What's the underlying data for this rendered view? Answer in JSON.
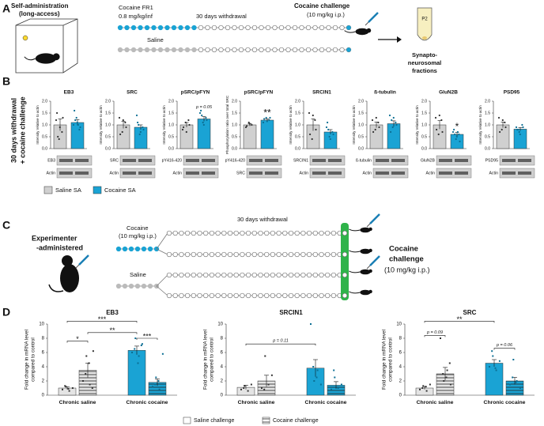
{
  "panel_a": {
    "letter": "A",
    "setup": [
      "Self-administration",
      "(long-access)"
    ],
    "cocaine_dose": [
      "Cocaine FR1",
      "0.8 mg/kg/inf"
    ],
    "withdrawal": "30 days withdrawal",
    "saline": "Saline",
    "challenge": [
      "Cocaine challenge",
      "(10 mg/kg i.p.)"
    ],
    "tube": "P2",
    "fractions": [
      "Synapto-",
      "neurosomal",
      "fractions"
    ]
  },
  "panel_b": {
    "letter": "B",
    "type": "bar",
    "side_label": [
      "30 days withdrawal",
      "+ cocaine challenge"
    ],
    "ylim": [
      0,
      2
    ],
    "yticks": [
      {
        "value": 0,
        "label": "0.0"
      },
      0.5,
      {
        "value": 1,
        "label": "1.0"
      },
      1.5,
      {
        "value": 2,
        "label": "2.0"
      }
    ],
    "series": [
      {
        "name": "Saline SA",
        "color": "#d0d0d0"
      },
      {
        "name": "Cocaine SA",
        "color": "#1aa3d4"
      }
    ],
    "charts": [
      {
        "title": "EB3",
        "ylabel": "Intensity relative to actin",
        "values": [
          1.0,
          1.1
        ],
        "errors": [
          0.25,
          0.12
        ],
        "points": [
          [
            1.2,
            0.4,
            0.7,
            1.5,
            0.9,
            1.3,
            0.5
          ],
          [
            1.0,
            1.3,
            0.8,
            1.6,
            1.1,
            0.9,
            1.2,
            1.0
          ]
        ],
        "blots": [
          "EB3",
          "Actin"
        ]
      },
      {
        "title": "SRC",
        "ylabel": "Intensity relative to actin",
        "values": [
          1.0,
          0.9
        ],
        "errors": [
          0.15,
          0.1
        ],
        "points": [
          [
            1.3,
            0.7,
            1.1,
            0.6,
            1.2,
            0.9
          ],
          [
            1.4,
            0.6,
            0.9,
            1.1,
            0.7,
            0.8,
            1.0
          ]
        ],
        "blots": [
          "SRC",
          "Actin"
        ]
      },
      {
        "title": "pSRC/pFYN",
        "ylabel": "Intensity relative to actin",
        "values": [
          1.0,
          1.25
        ],
        "errors": [
          0.1,
          0.1
        ],
        "points": [
          [
            0.8,
            1.1,
            1.2,
            0.9,
            0.7,
            1.0
          ],
          [
            1.5,
            1.1,
            1.3,
            1.6,
            1.0,
            1.2,
            1.4
          ]
        ],
        "blots": [
          "pY416-420",
          "Actin"
        ],
        "annotation": "p = 0.05"
      },
      {
        "title": "pSRC/pFYN",
        "ylabel": "Phosphorylation ratio over total SRC",
        "values": [
          1.0,
          1.2
        ],
        "errors": [
          0.05,
          0.05
        ],
        "points": [
          [
            0.9,
            1.1,
            1.0,
            0.95,
            1.05
          ],
          [
            1.1,
            1.3,
            1.2,
            1.25,
            1.15,
            1.3
          ]
        ],
        "blots": [
          "pY416-420",
          "SRC"
        ],
        "annotation": "**"
      },
      {
        "title": "SRCIN1",
        "ylabel": "Intensity relative to actin",
        "values": [
          1.0,
          0.7
        ],
        "errors": [
          0.25,
          0.1
        ],
        "points": [
          [
            1.5,
            0.4,
            1.2,
            0.6,
            1.4,
            0.8
          ],
          [
            0.9,
            0.5,
            0.7,
            1.1,
            0.4,
            0.6,
            0.8
          ]
        ],
        "blots": [
          "SRCIN1",
          "Actin"
        ]
      },
      {
        "title": "ß-tubulin",
        "ylabel": "Intensity relative to actin",
        "values": [
          1.0,
          1.05
        ],
        "errors": [
          0.12,
          0.12
        ],
        "points": [
          [
            1.2,
            0.8,
            1.1,
            0.7,
            1.3,
            0.9
          ],
          [
            1.4,
            0.9,
            1.1,
            0.7,
            1.3,
            1.0,
            1.2
          ]
        ],
        "blots": [
          "ß-tubulin",
          "Actin"
        ]
      },
      {
        "title": "GluN2B",
        "ylabel": "Intensity relative to actin",
        "values": [
          1.0,
          0.6
        ],
        "errors": [
          0.18,
          0.08
        ],
        "points": [
          [
            1.3,
            0.6,
            1.2,
            0.8,
            1.4,
            0.7
          ],
          [
            0.7,
            0.4,
            0.6,
            0.8,
            0.5,
            0.3,
            0.6,
            0.7
          ]
        ],
        "blots": [
          "GluN2B",
          "Actin"
        ],
        "annotation": "*"
      },
      {
        "title": "PSD95",
        "ylabel": "Intensity relative to actin",
        "values": [
          1.0,
          0.82
        ],
        "errors": [
          0.12,
          0.07
        ],
        "points": [
          [
            1.3,
            0.8,
            1.1,
            0.7,
            1.2,
            0.9
          ],
          [
            0.9,
            0.7,
            1.0,
            0.8,
            0.6,
            0.9,
            0.8
          ]
        ],
        "blots": [
          "PSD95",
          "Actin"
        ]
      }
    ]
  },
  "panel_c": {
    "letter": "C",
    "source": [
      "Experimenter",
      "-administered"
    ],
    "cocaine": [
      "Cocaine",
      "(10 mg/kg i.p.)"
    ],
    "withdrawal": "30 days withdrawal",
    "saline": "Saline",
    "challenge": [
      "Cocaine",
      "challenge",
      "(10 mg/kg i.p.)"
    ]
  },
  "panel_d": {
    "letter": "D",
    "type": "bar",
    "ylabel": [
      "Fold change in mRNA level",
      "compared to control"
    ],
    "categories": [
      "Chronic saline",
      "Chronic cocaine"
    ],
    "category_colors": [
      "#e4e4e4",
      "#1aa3d4"
    ],
    "series": [
      {
        "name": "Saline challenge",
        "pattern": "plain"
      },
      {
        "name": "Cocaine challenge",
        "pattern": "hatched"
      }
    ],
    "ylim": [
      0,
      10
    ],
    "yticks": [
      0,
      2,
      4,
      6,
      8,
      10
    ],
    "charts": [
      {
        "title": "EB3",
        "values": [
          [
            1.0,
            3.5
          ],
          [
            6.3,
            1.8
          ]
        ],
        "errors": [
          [
            0.2,
            1.0
          ],
          [
            0.6,
            0.5
          ]
        ],
        "points": [
          [
            [
              0.8,
              1.2,
              0.6,
              1.0,
              1.3,
              0.9
            ],
            [
              2.0,
              5.5,
              1.5,
              6.2,
              3.0,
              4.5,
              1.0
            ]
          ],
          [
            [
              6.0,
              8.0,
              5.5,
              7.2,
              6.5,
              4.5,
              7.0
            ],
            [
              1.2,
              2.5,
              0.8,
              5.8,
              1.5,
              2.0
            ]
          ]
        ],
        "annotations": [
          "*",
          "***",
          "**",
          "***"
        ]
      },
      {
        "title": "SRCIN1",
        "values": [
          [
            1.1,
            2.0
          ],
          [
            3.8,
            1.4
          ]
        ],
        "errors": [
          [
            0.3,
            0.8
          ],
          [
            1.2,
            0.5
          ]
        ],
        "points": [
          [
            [
              0.8,
              1.3,
              0.6,
              1.5,
              1.0
            ],
            [
              1.0,
              5.5,
              1.5,
              2.8,
              0.8
            ]
          ],
          [
            [
              10.0,
              2.0,
              3.5,
              1.5,
              4.0,
              2.5
            ],
            [
              0.8,
              2.5,
              1.0,
              1.5,
              3.5
            ]
          ]
        ],
        "annotations": [
          "p = 0.11"
        ]
      },
      {
        "title": "SRC",
        "values": [
          [
            1.0,
            3.0
          ],
          [
            4.5,
            2.0
          ]
        ],
        "errors": [
          [
            0.2,
            0.9
          ],
          [
            0.5,
            0.5
          ]
        ],
        "points": [
          [
            [
              0.8,
              1.3,
              0.6,
              1.5,
              1.0,
              1.2
            ],
            [
              8.0,
              2.0,
              3.5,
              1.5,
              3.0,
              2.5,
              4.5
            ]
          ],
          [
            [
              4.0,
              5.5,
              3.5,
              4.8,
              6.2,
              3.8
            ],
            [
              1.5,
              5.0,
              2.0,
              1.0,
              2.5,
              1.8
            ]
          ]
        ],
        "annotations": [
          "p = 0.09",
          "**",
          "p = 0.06"
        ]
      }
    ]
  }
}
